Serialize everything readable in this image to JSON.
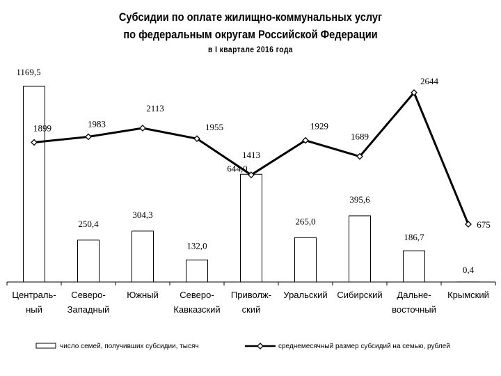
{
  "chart_data": {
    "type": "bar+line",
    "title_lines": [
      "Субсидии по оплате жилищно-коммунальных услуг",
      "по федеральным округам Российской Федерации"
    ],
    "subtitle": "в I квартале 2016 года",
    "categories": [
      [
        "Централь-",
        "ный"
      ],
      [
        "Северо-",
        "Западный"
      ],
      [
        "Южный"
      ],
      [
        "Северо-",
        "Кавказский"
      ],
      [
        "Приволж-",
        "ский"
      ],
      [
        "Уральский"
      ],
      [
        "Сибирский"
      ],
      [
        "Дальне-",
        "восточный"
      ],
      [
        "Крымский"
      ]
    ],
    "series": [
      {
        "name": "число семей, получивших субсидии, тысяч",
        "kind": "bar",
        "values": [
          1169.5,
          250.4,
          304.3,
          132.0,
          644.0,
          265.0,
          395.6,
          186.7,
          0.4
        ],
        "labels": [
          "1169,5",
          "250,4",
          "304,3",
          "132,0",
          "644,0",
          "265,0",
          "395,6",
          "186,7",
          "0,4"
        ]
      },
      {
        "name": "среднемесячный размер субсидий на семью, рублей",
        "kind": "line",
        "values": [
          1899,
          1983,
          2113,
          1955,
          1413,
          1929,
          1689,
          2644,
          675
        ],
        "labels": [
          "1899",
          "1983",
          "2113",
          "1955",
          "1413",
          "1929",
          "1689",
          "2644",
          "675"
        ]
      }
    ],
    "legend_position": "bottom",
    "grid": false
  }
}
